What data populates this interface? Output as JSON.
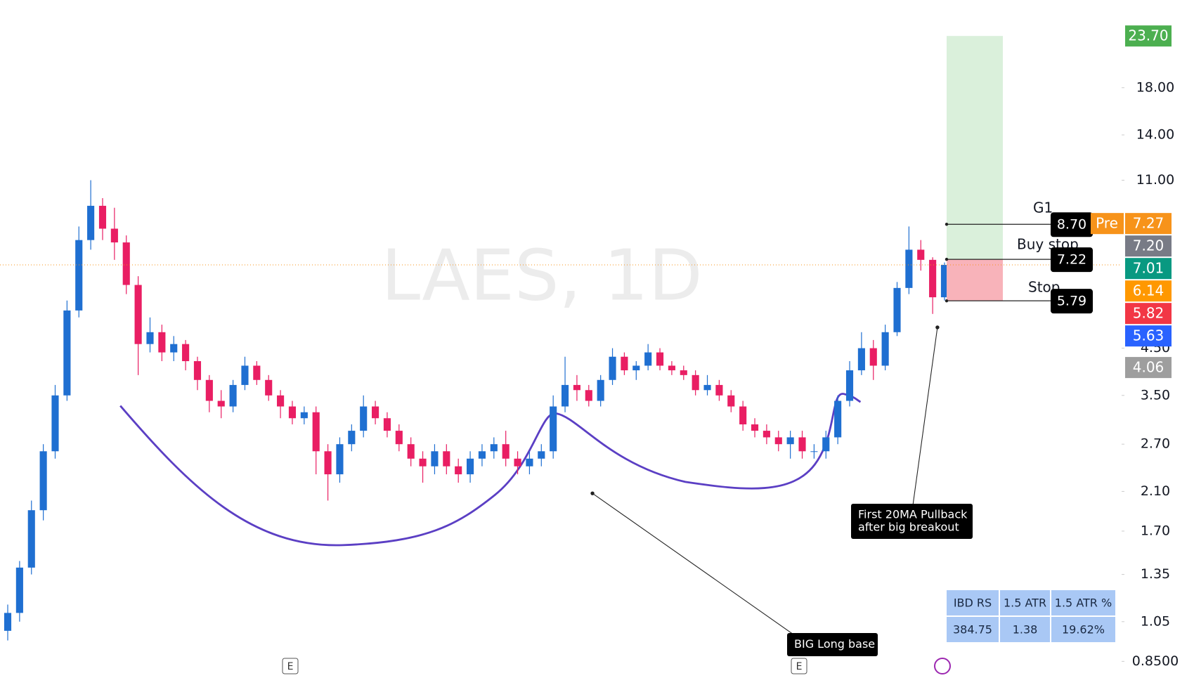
{
  "chart_data": {
    "type": "candlestick",
    "title": "LAES, 1D",
    "log_scale": true,
    "ylim": [
      0.778,
      28.7
    ],
    "yticks": [
      {
        "value": 0.85,
        "label": "0.8500"
      },
      {
        "value": 1.05,
        "label": "1.05"
      },
      {
        "value": 1.35,
        "label": "1.35"
      },
      {
        "value": 1.7,
        "label": "1.70"
      },
      {
        "value": 2.1,
        "label": "2.10"
      },
      {
        "value": 2.7,
        "label": "2.70"
      },
      {
        "value": 3.5,
        "label": "3.50"
      },
      {
        "value": 4.5,
        "label": "4.50"
      },
      {
        "value": 11,
        "label": "11.00"
      },
      {
        "value": 14,
        "label": "14.00"
      },
      {
        "value": 18,
        "label": "18.00"
      }
    ],
    "up_color": "#1f6fd1",
    "down_color": "#e91e63",
    "open": [
      1.0,
      1.1,
      1.4,
      1.9,
      2.6,
      3.5,
      5.5,
      8.0,
      9.6,
      8.5,
      7.9,
      6.3,
      4.6,
      4.9,
      4.4,
      4.6,
      4.2,
      3.8,
      3.4,
      3.3,
      3.7,
      4.1,
      3.8,
      3.5,
      3.3,
      3.1,
      3.2,
      2.6,
      2.3,
      2.7,
      2.9,
      3.3,
      3.1,
      2.9,
      2.7,
      2.5,
      2.4,
      2.6,
      2.4,
      2.3,
      2.5,
      2.6,
      2.7,
      2.5,
      2.4,
      2.5,
      2.6,
      3.3,
      3.7,
      3.6,
      3.4,
      3.8,
      4.3,
      4.0,
      4.1,
      4.4,
      4.1,
      4.0,
      3.9,
      3.6,
      3.7,
      3.5,
      3.3,
      3.0,
      2.9,
      2.8,
      2.7,
      2.8,
      2.6,
      2.6,
      2.8,
      3.4,
      4.0,
      4.5,
      4.1,
      4.9,
      6.2,
      7.6,
      7.2,
      5.9
    ],
    "high": [
      1.15,
      1.45,
      2.0,
      2.7,
      3.7,
      5.8,
      8.6,
      11.0,
      10.0,
      9.5,
      8.2,
      6.6,
      5.3,
      5.1,
      4.8,
      4.7,
      4.3,
      3.9,
      3.6,
      3.8,
      4.3,
      4.2,
      3.9,
      3.6,
      3.4,
      3.3,
      3.3,
      2.7,
      2.8,
      3.0,
      3.5,
      3.4,
      3.2,
      3.0,
      2.8,
      2.6,
      2.7,
      2.7,
      2.5,
      2.6,
      2.7,
      2.8,
      2.9,
      2.6,
      2.6,
      2.7,
      3.5,
      4.3,
      3.9,
      3.7,
      3.9,
      4.5,
      4.4,
      4.2,
      4.6,
      4.5,
      4.2,
      4.1,
      4.0,
      3.9,
      3.8,
      3.6,
      3.4,
      3.1,
      3.0,
      2.9,
      2.9,
      2.9,
      2.7,
      2.9,
      3.5,
      4.2,
      4.9,
      4.7,
      5.1,
      6.4,
      8.6,
      8.0,
      7.3,
      7.1
    ],
    "low": [
      0.95,
      1.05,
      1.35,
      1.8,
      2.5,
      3.4,
      5.3,
      7.6,
      8.0,
      7.2,
      6.0,
      3.9,
      4.4,
      4.2,
      4.2,
      4.0,
      3.6,
      3.2,
      3.1,
      3.2,
      3.6,
      3.7,
      3.4,
      3.1,
      3.0,
      3.0,
      2.3,
      2.0,
      2.2,
      2.6,
      2.8,
      3.0,
      2.8,
      2.6,
      2.4,
      2.2,
      2.3,
      2.3,
      2.2,
      2.2,
      2.4,
      2.5,
      2.4,
      2.3,
      2.3,
      2.4,
      2.5,
      3.2,
      3.4,
      3.3,
      3.3,
      3.7,
      3.9,
      3.8,
      4.0,
      4.0,
      3.9,
      3.8,
      3.5,
      3.5,
      3.4,
      3.2,
      2.9,
      2.8,
      2.7,
      2.6,
      2.5,
      2.5,
      2.5,
      2.5,
      2.7,
      3.3,
      3.9,
      3.8,
      4.0,
      4.8,
      6.0,
      6.8,
      5.4,
      5.8
    ],
    "close": [
      1.1,
      1.4,
      1.9,
      2.6,
      3.5,
      5.5,
      8.0,
      9.6,
      8.5,
      7.9,
      6.3,
      4.6,
      4.9,
      4.4,
      4.6,
      4.2,
      3.8,
      3.4,
      3.3,
      3.7,
      4.1,
      3.8,
      3.5,
      3.3,
      3.1,
      3.2,
      2.6,
      2.3,
      2.7,
      2.9,
      3.3,
      3.1,
      2.9,
      2.7,
      2.5,
      2.4,
      2.6,
      2.4,
      2.3,
      2.5,
      2.6,
      2.7,
      2.5,
      2.4,
      2.5,
      2.6,
      3.3,
      3.7,
      3.6,
      3.4,
      3.8,
      4.3,
      4.0,
      4.1,
      4.4,
      4.1,
      4.0,
      3.9,
      3.6,
      3.7,
      3.5,
      3.3,
      3.0,
      2.9,
      2.8,
      2.7,
      2.8,
      2.6,
      2.6,
      2.8,
      3.4,
      4.0,
      4.5,
      4.1,
      4.9,
      6.2,
      7.6,
      7.2,
      5.9,
      7.01
    ],
    "price_badges": [
      {
        "value": 23.7,
        "label": "23.70",
        "color": "#4caf50"
      },
      {
        "value": 7.27,
        "label": "7.27",
        "color": "#f7931a",
        "tag": "Pre"
      },
      {
        "value": 7.2,
        "label": "7.20",
        "color": "#787b86"
      },
      {
        "value": 7.01,
        "label": "7.01",
        "color": "#089981"
      },
      {
        "value": 6.14,
        "label": "6.14",
        "color": "#ff9800"
      },
      {
        "value": 5.82,
        "label": "5.82",
        "color": "#f23645"
      },
      {
        "value": 5.63,
        "label": "5.63",
        "color": "#2962ff"
      },
      {
        "value": 4.06,
        "label": "4.06",
        "color": "#9e9e9e"
      }
    ],
    "levels": [
      {
        "name": "G1",
        "value": 8.7,
        "label": "8.70"
      },
      {
        "name": "Buy stop",
        "value": 7.22,
        "label": "7.22"
      },
      {
        "name": "Stop",
        "value": 5.79,
        "label": "5.79"
      }
    ],
    "annotations": [
      {
        "lines": [
          "First 20MA Pullback",
          "after big breakout"
        ]
      },
      {
        "lines": [
          "BIG Long base"
        ]
      }
    ],
    "earnings_markers": [
      "E",
      "E"
    ],
    "table": {
      "headers": [
        "IBD RS",
        "1.5 ATR",
        "1.5 ATR %"
      ],
      "rows": [
        [
          "384.75",
          "1.38",
          "19.62%"
        ]
      ]
    }
  }
}
